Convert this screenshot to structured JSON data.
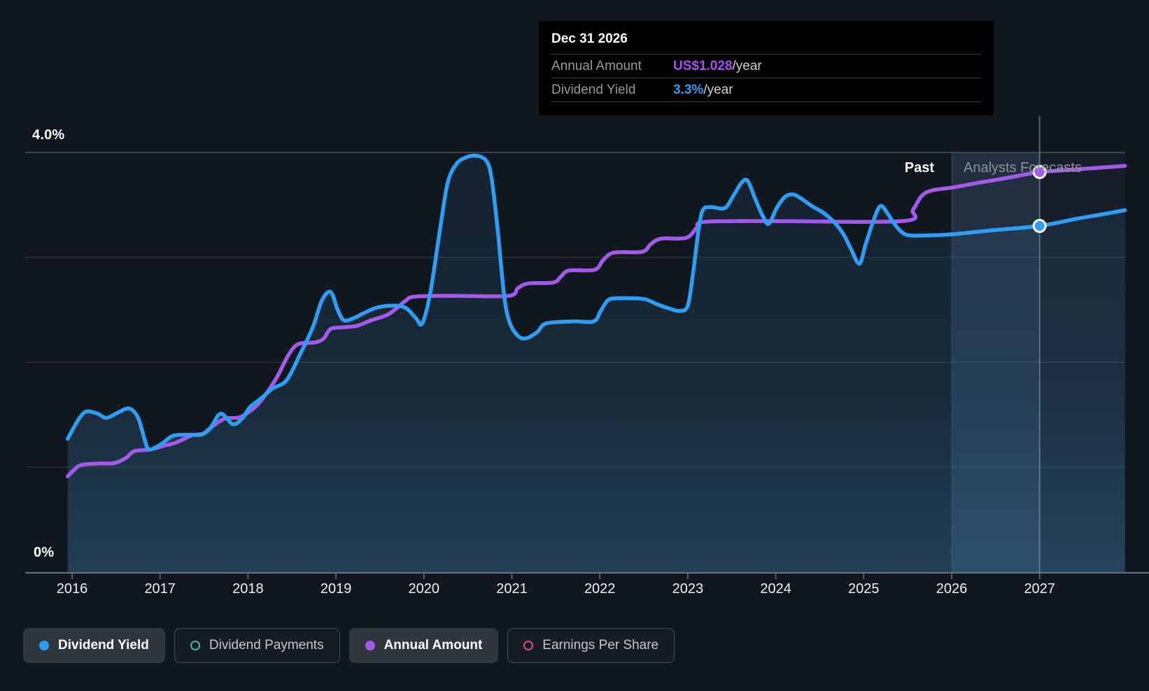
{
  "labels": {
    "y_top": "4.0%",
    "y_bottom": "0%",
    "past": "Past",
    "forecast": "Analysts Forecasts"
  },
  "tooltip": {
    "title": "Dec 31 2026",
    "rows": [
      {
        "label": "Annual Amount",
        "value": "US$1.028",
        "suffix": "/year",
        "value_color": "#ab4ff2"
      },
      {
        "label": "Dividend Yield",
        "value": "3.3%",
        "suffix": "/year",
        "value_color": "#2e9df2"
      }
    ]
  },
  "x_axis": {
    "years": [
      "2016",
      "2017",
      "2018",
      "2019",
      "2020",
      "2021",
      "2022",
      "2023",
      "2024",
      "2025",
      "2026",
      "2027"
    ]
  },
  "legend": [
    {
      "label": "Dividend Yield",
      "marker": "filled",
      "color": "#2e9df2",
      "active": true
    },
    {
      "label": "Dividend Payments",
      "marker": "ring",
      "color": "#43b8ae",
      "active": false
    },
    {
      "label": "Annual Amount",
      "marker": "filled",
      "color": "#a45ae8",
      "active": true
    },
    {
      "label": "Earnings Per Share",
      "marker": "ring",
      "color": "#d4498f",
      "active": false
    }
  ],
  "colors": {
    "background": "#11171f",
    "blue": "#2e9df2",
    "purple": "#a45ae8",
    "teal": "#43b8ae",
    "pink": "#d4498f",
    "axis": "#6b747e",
    "grid": "rgba(255,255,255,0.10)",
    "grid_top": "#49525c",
    "divider": "rgba(255,255,255,0.12)",
    "hover_line": "rgba(143,163,181,0.55)",
    "forecast_overlay": "rgba(130,170,210,0.055)",
    "hover_band": "rgba(110,175,235,0.12)",
    "area_top": "rgba(58,132,186,0.10)",
    "area_mid": "rgba(58,138,192,0.16)",
    "area_bottom": "rgba(72,156,210,0.30)"
  },
  "chart_data": {
    "type": "area",
    "x_domain": [
      2015.95,
      2027.97
    ],
    "y_axis": {
      "label": "Dividend Yield",
      "unit": "%",
      "min": 0,
      "max": 4.0,
      "gridlines_pct": [
        4,
        3,
        2,
        1,
        0
      ]
    },
    "forecast_start_year": 2026.0,
    "hover": {
      "year": 2027.0,
      "date_label": "Dec 31 2026",
      "annual_amount_usd": 1.028,
      "dividend_yield_pct": 3.3
    },
    "series": [
      {
        "name": "Dividend Yield",
        "unit": "%",
        "color": "#2e9df2",
        "area": true,
        "points": [
          [
            2015.95,
            1.27
          ],
          [
            2016.07,
            1.45
          ],
          [
            2016.16,
            1.53
          ],
          [
            2016.29,
            1.51
          ],
          [
            2016.39,
            1.47
          ],
          [
            2016.52,
            1.52
          ],
          [
            2016.65,
            1.56
          ],
          [
            2016.75,
            1.47
          ],
          [
            2016.83,
            1.25
          ],
          [
            2016.87,
            1.17
          ],
          [
            2016.95,
            1.19
          ],
          [
            2017.03,
            1.23
          ],
          [
            2017.15,
            1.3
          ],
          [
            2017.33,
            1.31
          ],
          [
            2017.47,
            1.31
          ],
          [
            2017.57,
            1.37
          ],
          [
            2017.69,
            1.51
          ],
          [
            2017.83,
            1.41
          ],
          [
            2017.94,
            1.47
          ],
          [
            2018.02,
            1.57
          ],
          [
            2018.14,
            1.65
          ],
          [
            2018.28,
            1.75
          ],
          [
            2018.44,
            1.83
          ],
          [
            2018.6,
            2.09
          ],
          [
            2018.74,
            2.34
          ],
          [
            2018.84,
            2.59
          ],
          [
            2018.94,
            2.67
          ],
          [
            2019.02,
            2.5
          ],
          [
            2019.09,
            2.4
          ],
          [
            2019.2,
            2.42
          ],
          [
            2019.32,
            2.47
          ],
          [
            2019.46,
            2.52
          ],
          [
            2019.63,
            2.54
          ],
          [
            2019.79,
            2.52
          ],
          [
            2019.91,
            2.42
          ],
          [
            2019.98,
            2.37
          ],
          [
            2020.07,
            2.65
          ],
          [
            2020.18,
            3.25
          ],
          [
            2020.27,
            3.71
          ],
          [
            2020.37,
            3.89
          ],
          [
            2020.47,
            3.95
          ],
          [
            2020.59,
            3.97
          ],
          [
            2020.71,
            3.92
          ],
          [
            2020.77,
            3.75
          ],
          [
            2020.84,
            3.25
          ],
          [
            2020.91,
            2.65
          ],
          [
            2020.97,
            2.39
          ],
          [
            2021.07,
            2.25
          ],
          [
            2021.17,
            2.23
          ],
          [
            2021.29,
            2.29
          ],
          [
            2021.39,
            2.37
          ],
          [
            2021.7,
            2.39
          ],
          [
            2021.93,
            2.39
          ],
          [
            2022.01,
            2.49
          ],
          [
            2022.09,
            2.59
          ],
          [
            2022.18,
            2.61
          ],
          [
            2022.38,
            2.61
          ],
          [
            2022.52,
            2.6
          ],
          [
            2022.66,
            2.55
          ],
          [
            2022.8,
            2.51
          ],
          [
            2022.91,
            2.49
          ],
          [
            2023.0,
            2.54
          ],
          [
            2023.06,
            2.85
          ],
          [
            2023.12,
            3.25
          ],
          [
            2023.17,
            3.45
          ],
          [
            2023.26,
            3.48
          ],
          [
            2023.42,
            3.47
          ],
          [
            2023.52,
            3.59
          ],
          [
            2023.61,
            3.71
          ],
          [
            2023.68,
            3.73
          ],
          [
            2023.77,
            3.55
          ],
          [
            2023.85,
            3.4
          ],
          [
            2023.92,
            3.32
          ],
          [
            2024.01,
            3.47
          ],
          [
            2024.11,
            3.58
          ],
          [
            2024.2,
            3.6
          ],
          [
            2024.29,
            3.56
          ],
          [
            2024.41,
            3.49
          ],
          [
            2024.55,
            3.42
          ],
          [
            2024.67,
            3.33
          ],
          [
            2024.77,
            3.22
          ],
          [
            2024.85,
            3.09
          ],
          [
            2024.95,
            2.94
          ],
          [
            2025.02,
            3.12
          ],
          [
            2025.11,
            3.35
          ],
          [
            2025.19,
            3.49
          ],
          [
            2025.27,
            3.42
          ],
          [
            2025.34,
            3.33
          ],
          [
            2025.42,
            3.25
          ],
          [
            2025.52,
            3.21
          ],
          [
            2025.76,
            3.21
          ],
          [
            2026.0,
            3.22
          ],
          [
            2026.48,
            3.26
          ],
          [
            2027.0,
            3.3
          ],
          [
            2027.43,
            3.37
          ],
          [
            2027.71,
            3.41
          ],
          [
            2027.97,
            3.45
          ]
        ]
      },
      {
        "name": "Annual Amount",
        "unit": "US$/year",
        "color": "#a45ae8",
        "area": false,
        "points": [
          [
            2015.95,
            0.246
          ],
          [
            2016.02,
            0.262
          ],
          [
            2016.1,
            0.275
          ],
          [
            2016.29,
            0.279
          ],
          [
            2016.48,
            0.28
          ],
          [
            2016.61,
            0.293
          ],
          [
            2016.71,
            0.311
          ],
          [
            2016.89,
            0.315
          ],
          [
            2017.05,
            0.325
          ],
          [
            2017.17,
            0.332
          ],
          [
            2017.26,
            0.341
          ],
          [
            2017.37,
            0.352
          ],
          [
            2017.49,
            0.356
          ],
          [
            2017.57,
            0.37
          ],
          [
            2017.73,
            0.394
          ],
          [
            2017.89,
            0.397
          ],
          [
            2018.0,
            0.41
          ],
          [
            2018.12,
            0.433
          ],
          [
            2018.24,
            0.469
          ],
          [
            2018.34,
            0.505
          ],
          [
            2018.44,
            0.55
          ],
          [
            2018.52,
            0.577
          ],
          [
            2018.6,
            0.588
          ],
          [
            2018.76,
            0.59
          ],
          [
            2018.86,
            0.6
          ],
          [
            2018.94,
            0.625
          ],
          [
            2019.08,
            0.629
          ],
          [
            2019.24,
            0.633
          ],
          [
            2019.4,
            0.647
          ],
          [
            2019.6,
            0.663
          ],
          [
            2019.79,
            0.697
          ],
          [
            2019.9,
            0.708
          ],
          [
            2020.35,
            0.71
          ],
          [
            2020.96,
            0.71
          ],
          [
            2021.07,
            0.73
          ],
          [
            2021.19,
            0.742
          ],
          [
            2021.47,
            0.744
          ],
          [
            2021.56,
            0.76
          ],
          [
            2021.65,
            0.775
          ],
          [
            2021.94,
            0.777
          ],
          [
            2022.04,
            0.802
          ],
          [
            2022.16,
            0.821
          ],
          [
            2022.48,
            0.823
          ],
          [
            2022.58,
            0.843
          ],
          [
            2022.7,
            0.857
          ],
          [
            2022.98,
            0.859
          ],
          [
            2023.1,
            0.884
          ],
          [
            2023.19,
            0.9
          ],
          [
            2023.93,
            0.902
          ],
          [
            2025.44,
            0.902
          ],
          [
            2025.56,
            0.931
          ],
          [
            2025.66,
            0.967
          ],
          [
            2025.78,
            0.981
          ],
          [
            2026.0,
            0.988
          ],
          [
            2026.32,
            1.001
          ],
          [
            2026.68,
            1.015
          ],
          [
            2027.0,
            1.028
          ],
          [
            2027.43,
            1.035
          ],
          [
            2027.97,
            1.044
          ]
        ]
      }
    ]
  }
}
